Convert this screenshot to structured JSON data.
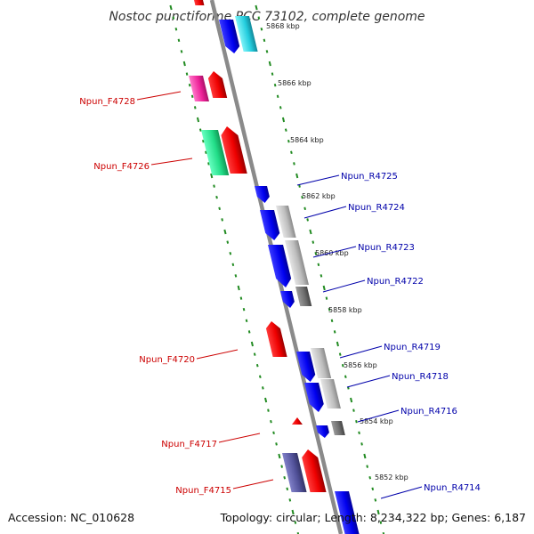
{
  "title": "Nostoc punctiforme PCC 73102, complete genome",
  "accession_text": "Accession: NC_010628",
  "summary_text": "Topology: circular; Length: 8,234,322 bp; Genes: 6,187",
  "colors": {
    "backbone": "#8a8a8a",
    "forward_label": "#cc0000",
    "reverse_label": "#0000aa",
    "tick": "#228b22"
  },
  "kbp_markers": [
    {
      "label": "5868 kbp"
    },
    {
      "label": "5866 kbp"
    },
    {
      "label": "5864 kbp"
    },
    {
      "label": "5862 kbp"
    },
    {
      "label": "5860 kbp"
    },
    {
      "label": "5858 kbp"
    },
    {
      "label": "5856 kbp"
    },
    {
      "label": "5854 kbp"
    },
    {
      "label": "5852 kbp"
    }
  ],
  "gene_labels": [
    {
      "name": "Npun_F4728",
      "strand": "forward"
    },
    {
      "name": "Npun_F4726",
      "strand": "forward"
    },
    {
      "name": "Npun_F4720",
      "strand": "forward"
    },
    {
      "name": "Npun_F4717",
      "strand": "forward"
    },
    {
      "name": "Npun_F4715",
      "strand": "forward"
    },
    {
      "name": "Npun_R4725",
      "strand": "reverse"
    },
    {
      "name": "Npun_R4724",
      "strand": "reverse"
    },
    {
      "name": "Npun_R4723",
      "strand": "reverse"
    },
    {
      "name": "Npun_R4722",
      "strand": "reverse"
    },
    {
      "name": "Npun_R4719",
      "strand": "reverse"
    },
    {
      "name": "Npun_R4718",
      "strand": "reverse"
    },
    {
      "name": "Npun_R4716",
      "strand": "reverse"
    },
    {
      "name": "Npun_R4714",
      "strand": "reverse"
    }
  ]
}
